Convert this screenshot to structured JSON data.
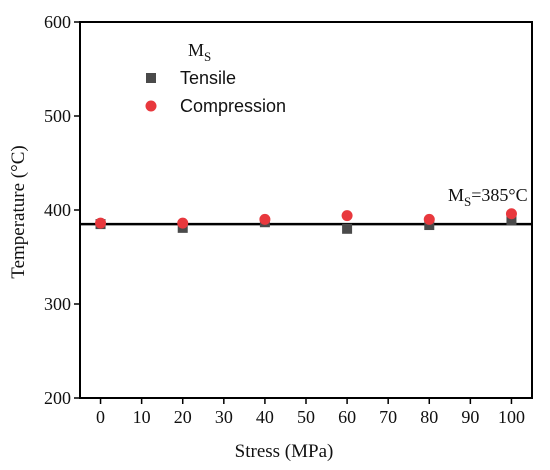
{
  "chart_data": {
    "type": "scatter",
    "xlabel": "Stress (MPa)",
    "ylabel": "Temperature (°C)",
    "xlim": [
      -5,
      105
    ],
    "ylim": [
      200,
      600
    ],
    "xticks": [
      0,
      10,
      20,
      30,
      40,
      50,
      60,
      70,
      80,
      90,
      100
    ],
    "yticks": [
      200,
      300,
      400,
      500,
      600
    ],
    "legend_title_main": "M",
    "legend_title_sub": "S",
    "legend_placement": "top-left",
    "series": [
      {
        "name": "Tensile",
        "marker": "square",
        "color": "#4a4a4a",
        "x": [
          0,
          20,
          40,
          60,
          80,
          100
        ],
        "y": [
          385,
          381,
          387,
          380,
          384,
          389
        ]
      },
      {
        "name": "Compression",
        "marker": "circle",
        "color": "#e8383d",
        "x": [
          0,
          20,
          40,
          60,
          80,
          100
        ],
        "y": [
          386,
          386,
          390,
          394,
          390,
          396
        ]
      }
    ],
    "reference_line": {
      "y": 385,
      "color": "#000000"
    },
    "annotation": {
      "main": "M",
      "sub": "S",
      "rest": "=385°C"
    },
    "grid": false
  }
}
